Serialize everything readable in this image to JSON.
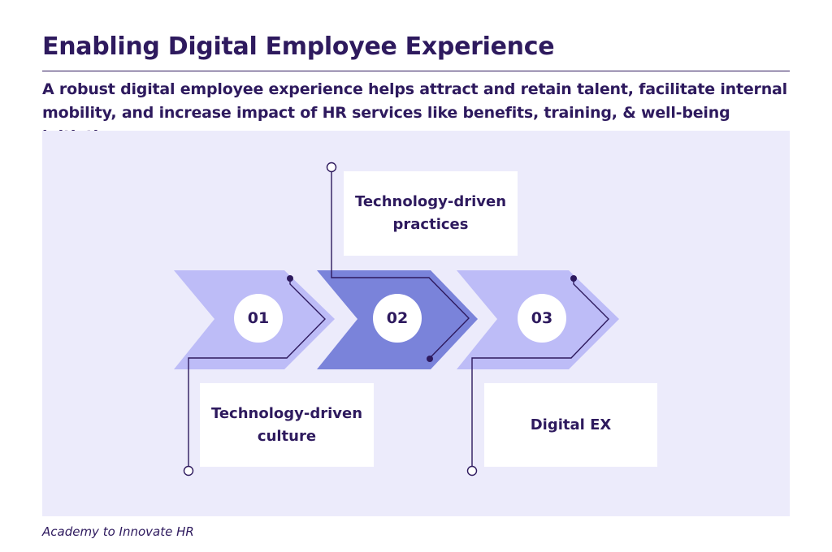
{
  "title": "Enabling Digital Employee Experience",
  "subtitle": "A robust digital employee experience helps attract and retain talent, facilitate internal mobility, and increase impact of HR services like benefits, training, & well-being initiatives.",
  "steps": [
    {
      "number": "01",
      "label": "Technology-driven\nculture"
    },
    {
      "number": "02",
      "label": "Technology-driven\npractices"
    },
    {
      "number": "03",
      "label": "Digital EX"
    }
  ],
  "colors": {
    "text": "#2e1a5e",
    "panel": "#ecebfb",
    "chevron_light": "#bdbcf7",
    "chevron_dark": "#7a83da"
  },
  "source": "Academy to Innovate HR"
}
